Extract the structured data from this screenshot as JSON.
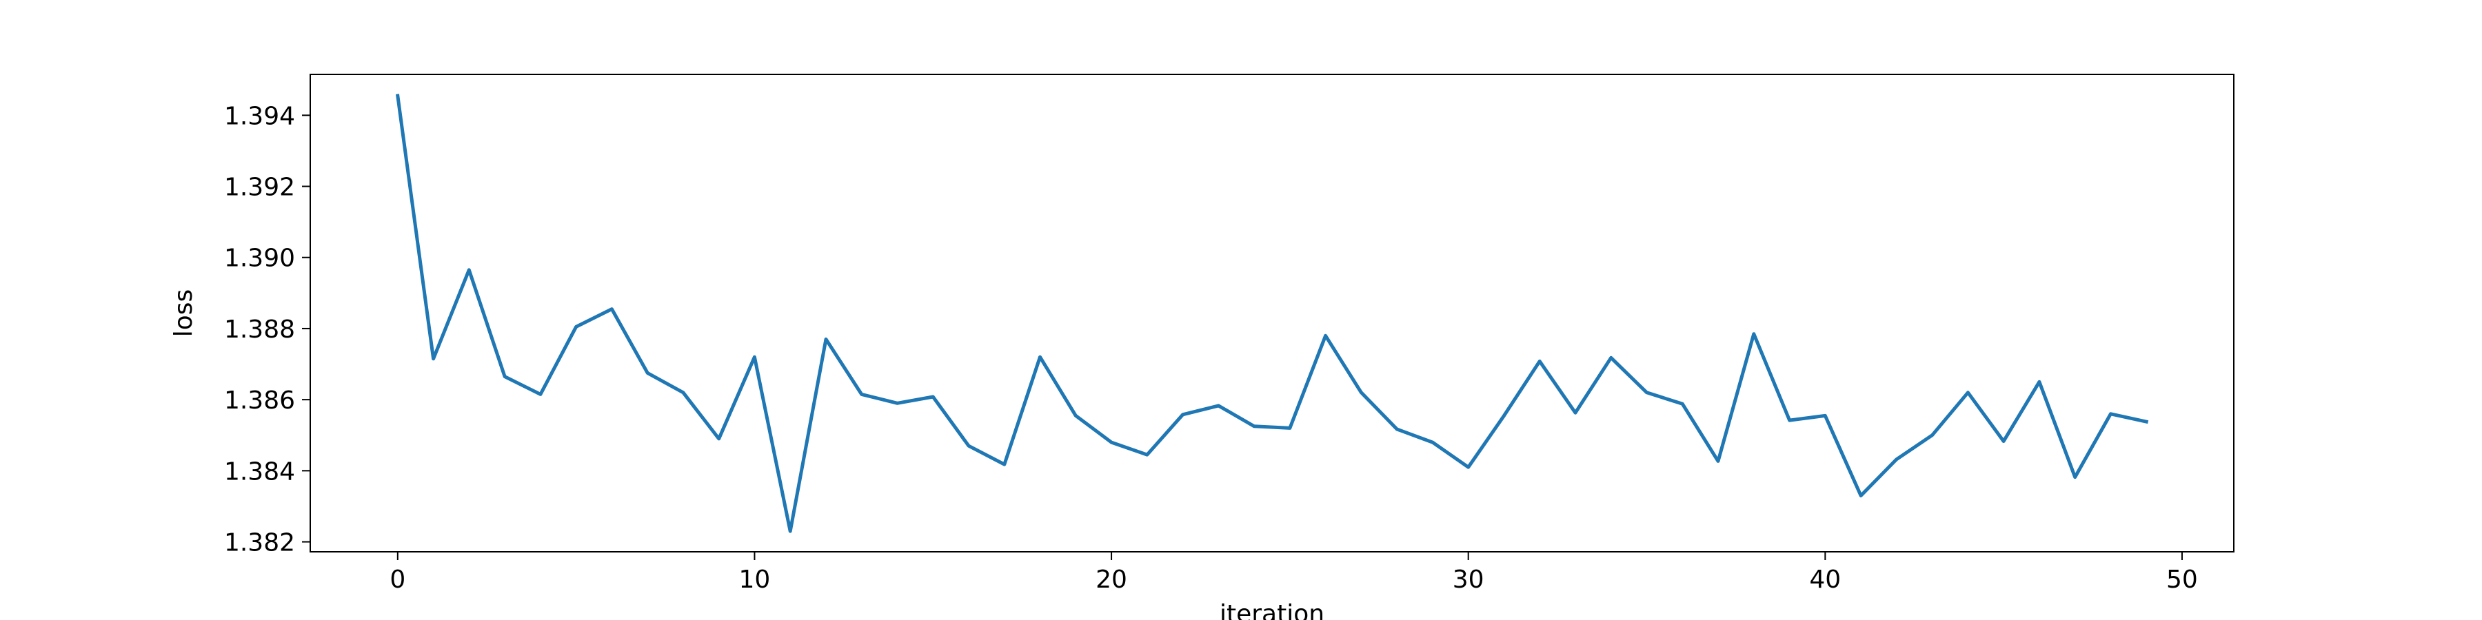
{
  "chart_data": {
    "type": "line",
    "xlabel": "iteration",
    "ylabel": "loss",
    "xlim": [
      -2.45,
      51.45
    ],
    "ylim": [
      1.38172,
      1.39515
    ],
    "x_ticks": [
      0,
      10,
      20,
      30,
      40,
      50
    ],
    "y_ticks": [
      1.382,
      1.384,
      1.386,
      1.388,
      1.39,
      1.392,
      1.394
    ],
    "grid": false,
    "series": [
      {
        "color": "#1f77b4",
        "x": [
          0,
          1,
          2,
          3,
          4,
          5,
          6,
          7,
          8,
          9,
          10,
          11,
          12,
          13,
          14,
          15,
          16,
          17,
          18,
          19,
          20,
          21,
          22,
          23,
          24,
          25,
          26,
          27,
          28,
          29,
          30,
          31,
          32,
          33,
          34,
          35,
          36,
          37,
          38,
          39,
          40,
          41,
          42,
          43,
          44,
          45,
          46,
          47,
          48,
          49
        ],
        "values": [
          1.39455,
          1.38715,
          1.38965,
          1.38665,
          1.38615,
          1.38805,
          1.38855,
          1.38675,
          1.3862,
          1.3849,
          1.3872,
          1.3823,
          1.3877,
          1.38615,
          1.3859,
          1.38608,
          1.3847,
          1.38418,
          1.3872,
          1.38555,
          1.3848,
          1.38445,
          1.38558,
          1.38583,
          1.38525,
          1.3852,
          1.3878,
          1.3862,
          1.38517,
          1.3848,
          1.3841,
          1.38555,
          1.38708,
          1.38563,
          1.38718,
          1.3862,
          1.38588,
          1.38427,
          1.38785,
          1.38542,
          1.38555,
          1.3833,
          1.38432,
          1.385,
          1.3862,
          1.38483,
          1.3865,
          1.38382,
          1.3856,
          1.38538
        ]
      }
    ]
  }
}
